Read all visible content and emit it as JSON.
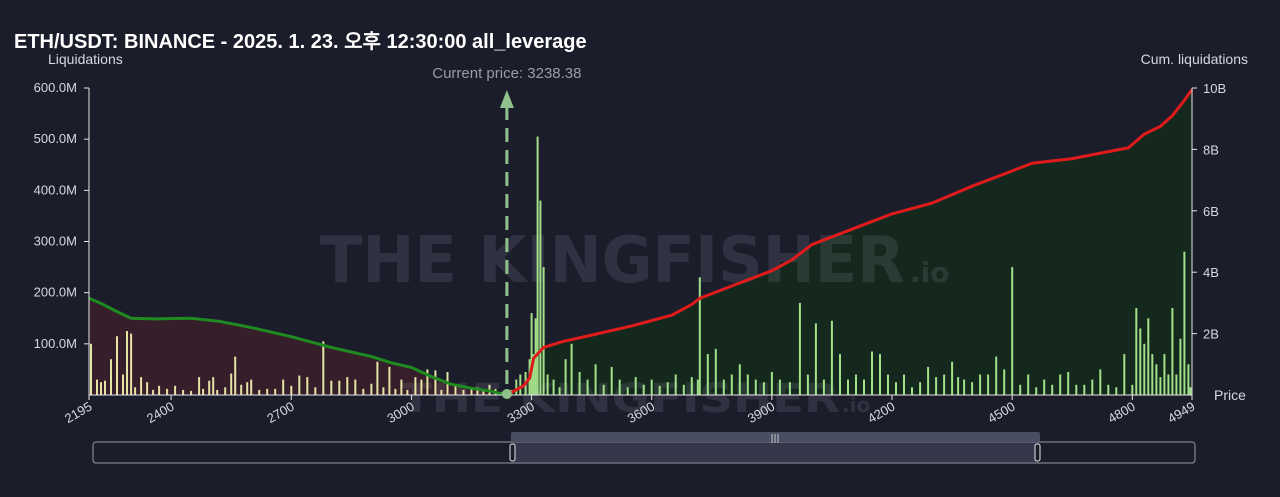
{
  "title": "ETH/USDT: BINANCE - 2025. 1. 23. 오후 12:30:00 all_leverage",
  "watermark": {
    "brand": "THE KINGFISHER",
    "suffix": ".io"
  },
  "colors": {
    "background": "#1c1d2b",
    "short_bar": "#a3e08a",
    "long_bar": "#e4e4a4",
    "cum_short": "#e01b1b",
    "cum_long": "#1f8a1f",
    "short_fill": "#15291e",
    "long_fill": "#3a1f2a",
    "price_marker": "#8fc28a",
    "slider": "#3b3f52"
  },
  "chart_data": {
    "type": "bar",
    "xlabel": "Price",
    "ylabel": "Liquidations",
    "y2label": "Cum. liquidations",
    "xlim": [
      2195,
      4949
    ],
    "ylim": [
      0,
      600000000
    ],
    "y2lim": [
      0,
      10000000000
    ],
    "x_ticks": [
      "2195",
      "2400",
      "2700",
      "3000",
      "3300",
      "3600",
      "3900",
      "4200",
      "4500",
      "4800",
      "4949"
    ],
    "y_ticks": [
      "600.0M",
      "500.0M",
      "400.0M",
      "300.0M",
      "200.0M",
      "100.0M"
    ],
    "y2_ticks": [
      "10B",
      "8B",
      "6B",
      "4B",
      "2B"
    ],
    "current_price": 3238.38,
    "current_price_label": "Current price: 3238.38",
    "series": [
      {
        "kind": "long_bars",
        "points": [
          [
            2200,
            100
          ],
          [
            2215,
            30
          ],
          [
            2225,
            25
          ],
          [
            2235,
            28
          ],
          [
            2250,
            70
          ],
          [
            2265,
            115
          ],
          [
            2280,
            40
          ],
          [
            2290,
            125
          ],
          [
            2300,
            120
          ],
          [
            2310,
            15
          ],
          [
            2325,
            35
          ],
          [
            2340,
            25
          ],
          [
            2355,
            10
          ],
          [
            2370,
            18
          ],
          [
            2390,
            12
          ],
          [
            2410,
            18
          ],
          [
            2430,
            10
          ],
          [
            2450,
            8
          ],
          [
            2470,
            35
          ],
          [
            2480,
            12
          ],
          [
            2495,
            28
          ],
          [
            2505,
            35
          ],
          [
            2515,
            10
          ],
          [
            2535,
            15
          ],
          [
            2550,
            42
          ],
          [
            2560,
            75
          ],
          [
            2575,
            20
          ],
          [
            2590,
            25
          ],
          [
            2600,
            30
          ],
          [
            2620,
            10
          ],
          [
            2640,
            12
          ],
          [
            2660,
            12
          ],
          [
            2680,
            30
          ],
          [
            2700,
            18
          ],
          [
            2720,
            38
          ],
          [
            2740,
            35
          ],
          [
            2760,
            15
          ],
          [
            2780,
            105
          ],
          [
            2800,
            28
          ],
          [
            2820,
            28
          ],
          [
            2840,
            35
          ],
          [
            2860,
            30
          ],
          [
            2880,
            12
          ],
          [
            2900,
            22
          ],
          [
            2915,
            65
          ],
          [
            2930,
            15
          ],
          [
            2945,
            55
          ],
          [
            2960,
            12
          ],
          [
            2975,
            30
          ],
          [
            2990,
            10
          ],
          [
            3010,
            35
          ],
          [
            3025,
            30
          ],
          [
            3040,
            50
          ],
          [
            3060,
            48
          ],
          [
            3075,
            10
          ],
          [
            3090,
            45
          ],
          [
            3110,
            20
          ],
          [
            3130,
            10
          ],
          [
            3150,
            12
          ],
          [
            3165,
            15
          ],
          [
            3180,
            8
          ],
          [
            3195,
            20
          ],
          [
            3210,
            12
          ],
          [
            3225,
            6
          ]
        ]
      },
      {
        "kind": "short_bars",
        "points": [
          [
            3250,
            10
          ],
          [
            3262,
            30
          ],
          [
            3272,
            40
          ],
          [
            3285,
            45
          ],
          [
            3295,
            70
          ],
          [
            3300,
            160
          ],
          [
            3305,
            80
          ],
          [
            3310,
            150
          ],
          [
            3315,
            505
          ],
          [
            3322,
            380
          ],
          [
            3330,
            250
          ],
          [
            3340,
            40
          ],
          [
            3355,
            30
          ],
          [
            3370,
            15
          ],
          [
            3385,
            70
          ],
          [
            3400,
            100
          ],
          [
            3420,
            45
          ],
          [
            3440,
            30
          ],
          [
            3460,
            60
          ],
          [
            3480,
            20
          ],
          [
            3500,
            55
          ],
          [
            3520,
            30
          ],
          [
            3540,
            15
          ],
          [
            3560,
            35
          ],
          [
            3580,
            20
          ],
          [
            3600,
            30
          ],
          [
            3620,
            18
          ],
          [
            3640,
            25
          ],
          [
            3660,
            40
          ],
          [
            3680,
            20
          ],
          [
            3700,
            35
          ],
          [
            3715,
            30
          ],
          [
            3720,
            230
          ],
          [
            3740,
            80
          ],
          [
            3760,
            90
          ],
          [
            3780,
            30
          ],
          [
            3800,
            40
          ],
          [
            3820,
            60
          ],
          [
            3840,
            40
          ],
          [
            3860,
            30
          ],
          [
            3880,
            25
          ],
          [
            3900,
            45
          ],
          [
            3920,
            30
          ],
          [
            3945,
            25
          ],
          [
            3970,
            180
          ],
          [
            3990,
            40
          ],
          [
            4010,
            140
          ],
          [
            4030,
            30
          ],
          [
            4050,
            145
          ],
          [
            4070,
            80
          ],
          [
            4090,
            30
          ],
          [
            4110,
            40
          ],
          [
            4130,
            30
          ],
          [
            4150,
            85
          ],
          [
            4170,
            80
          ],
          [
            4190,
            40
          ],
          [
            4210,
            25
          ],
          [
            4230,
            40
          ],
          [
            4250,
            15
          ],
          [
            4270,
            25
          ],
          [
            4290,
            55
          ],
          [
            4310,
            35
          ],
          [
            4330,
            40
          ],
          [
            4350,
            65
          ],
          [
            4365,
            35
          ],
          [
            4380,
            30
          ],
          [
            4400,
            25
          ],
          [
            4420,
            40
          ],
          [
            4440,
            40
          ],
          [
            4460,
            75
          ],
          [
            4480,
            50
          ],
          [
            4500,
            250
          ],
          [
            4520,
            20
          ],
          [
            4540,
            40
          ],
          [
            4560,
            15
          ],
          [
            4580,
            30
          ],
          [
            4600,
            20
          ],
          [
            4620,
            40
          ],
          [
            4640,
            45
          ],
          [
            4660,
            20
          ],
          [
            4680,
            20
          ],
          [
            4700,
            30
          ],
          [
            4720,
            50
          ],
          [
            4740,
            20
          ],
          [
            4760,
            15
          ],
          [
            4780,
            80
          ],
          [
            4800,
            20
          ],
          [
            4810,
            170
          ],
          [
            4820,
            130
          ],
          [
            4830,
            100
          ],
          [
            4840,
            150
          ],
          [
            4850,
            80
          ],
          [
            4860,
            60
          ],
          [
            4870,
            35
          ],
          [
            4880,
            80
          ],
          [
            4890,
            40
          ],
          [
            4900,
            170
          ],
          [
            4910,
            40
          ],
          [
            4920,
            110
          ],
          [
            4930,
            280
          ],
          [
            4940,
            60
          ],
          [
            4945,
            15
          ]
        ]
      },
      {
        "kind": "cum_long",
        "points": [
          [
            2195,
            3.15
          ],
          [
            2230,
            2.95
          ],
          [
            2260,
            2.75
          ],
          [
            2300,
            2.5
          ],
          [
            2360,
            2.48
          ],
          [
            2450,
            2.5
          ],
          [
            2520,
            2.4
          ],
          [
            2600,
            2.2
          ],
          [
            2700,
            1.9
          ],
          [
            2800,
            1.55
          ],
          [
            2900,
            1.25
          ],
          [
            2950,
            1.05
          ],
          [
            3000,
            0.9
          ],
          [
            3050,
            0.6
          ],
          [
            3100,
            0.35
          ],
          [
            3150,
            0.22
          ],
          [
            3200,
            0.12
          ],
          [
            3238,
            0.0
          ]
        ]
      },
      {
        "kind": "cum_short",
        "points": [
          [
            3238,
            0.0
          ],
          [
            3280,
            0.3
          ],
          [
            3295,
            0.55
          ],
          [
            3305,
            1.2
          ],
          [
            3330,
            1.55
          ],
          [
            3380,
            1.75
          ],
          [
            3450,
            1.95
          ],
          [
            3550,
            2.25
          ],
          [
            3650,
            2.6
          ],
          [
            3700,
            2.95
          ],
          [
            3720,
            3.15
          ],
          [
            3800,
            3.55
          ],
          [
            3900,
            4.05
          ],
          [
            3950,
            4.4
          ],
          [
            4000,
            4.9
          ],
          [
            4100,
            5.4
          ],
          [
            4200,
            5.9
          ],
          [
            4300,
            6.25
          ],
          [
            4400,
            6.8
          ],
          [
            4480,
            7.2
          ],
          [
            4550,
            7.55
          ],
          [
            4650,
            7.7
          ],
          [
            4750,
            7.95
          ],
          [
            4790,
            8.05
          ],
          [
            4830,
            8.5
          ],
          [
            4870,
            8.75
          ],
          [
            4900,
            9.1
          ],
          [
            4930,
            9.6
          ],
          [
            4949,
            9.95
          ]
        ]
      }
    ]
  }
}
